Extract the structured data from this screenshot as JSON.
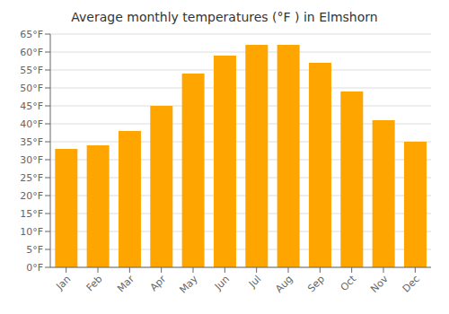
{
  "chart_data": {
    "type": "bar",
    "title": "Average monthly temperatures (°F ) in Elmshorn",
    "categories": [
      "Jan",
      "Feb",
      "Mar",
      "Apr",
      "May",
      "Jun",
      "Jul",
      "Aug",
      "Sep",
      "Oct",
      "Nov",
      "Dec"
    ],
    "values": [
      33,
      34,
      38,
      45,
      54,
      59,
      62,
      62,
      57,
      49,
      41,
      35
    ],
    "color": "#FFA500",
    "ylim": [
      0,
      65
    ],
    "yticks": [
      {
        "value": 0,
        "label": "0°F"
      },
      {
        "value": 5,
        "label": "5°F"
      },
      {
        "value": 10,
        "label": "10°F"
      },
      {
        "value": 15,
        "label": "15°F"
      },
      {
        "value": 20,
        "label": "20°F"
      },
      {
        "value": 25,
        "label": "25°F"
      },
      {
        "value": 30,
        "label": "30°F"
      },
      {
        "value": 35,
        "label": "35°F"
      },
      {
        "value": 40,
        "label": "40°F"
      },
      {
        "value": 45,
        "label": "45°F"
      },
      {
        "value": 50,
        "label": "50°F"
      },
      {
        "value": 55,
        "label": "55°F"
      },
      {
        "value": 60,
        "label": "60°F"
      },
      {
        "value": 65,
        "label": "65°F"
      }
    ],
    "grid": true
  }
}
